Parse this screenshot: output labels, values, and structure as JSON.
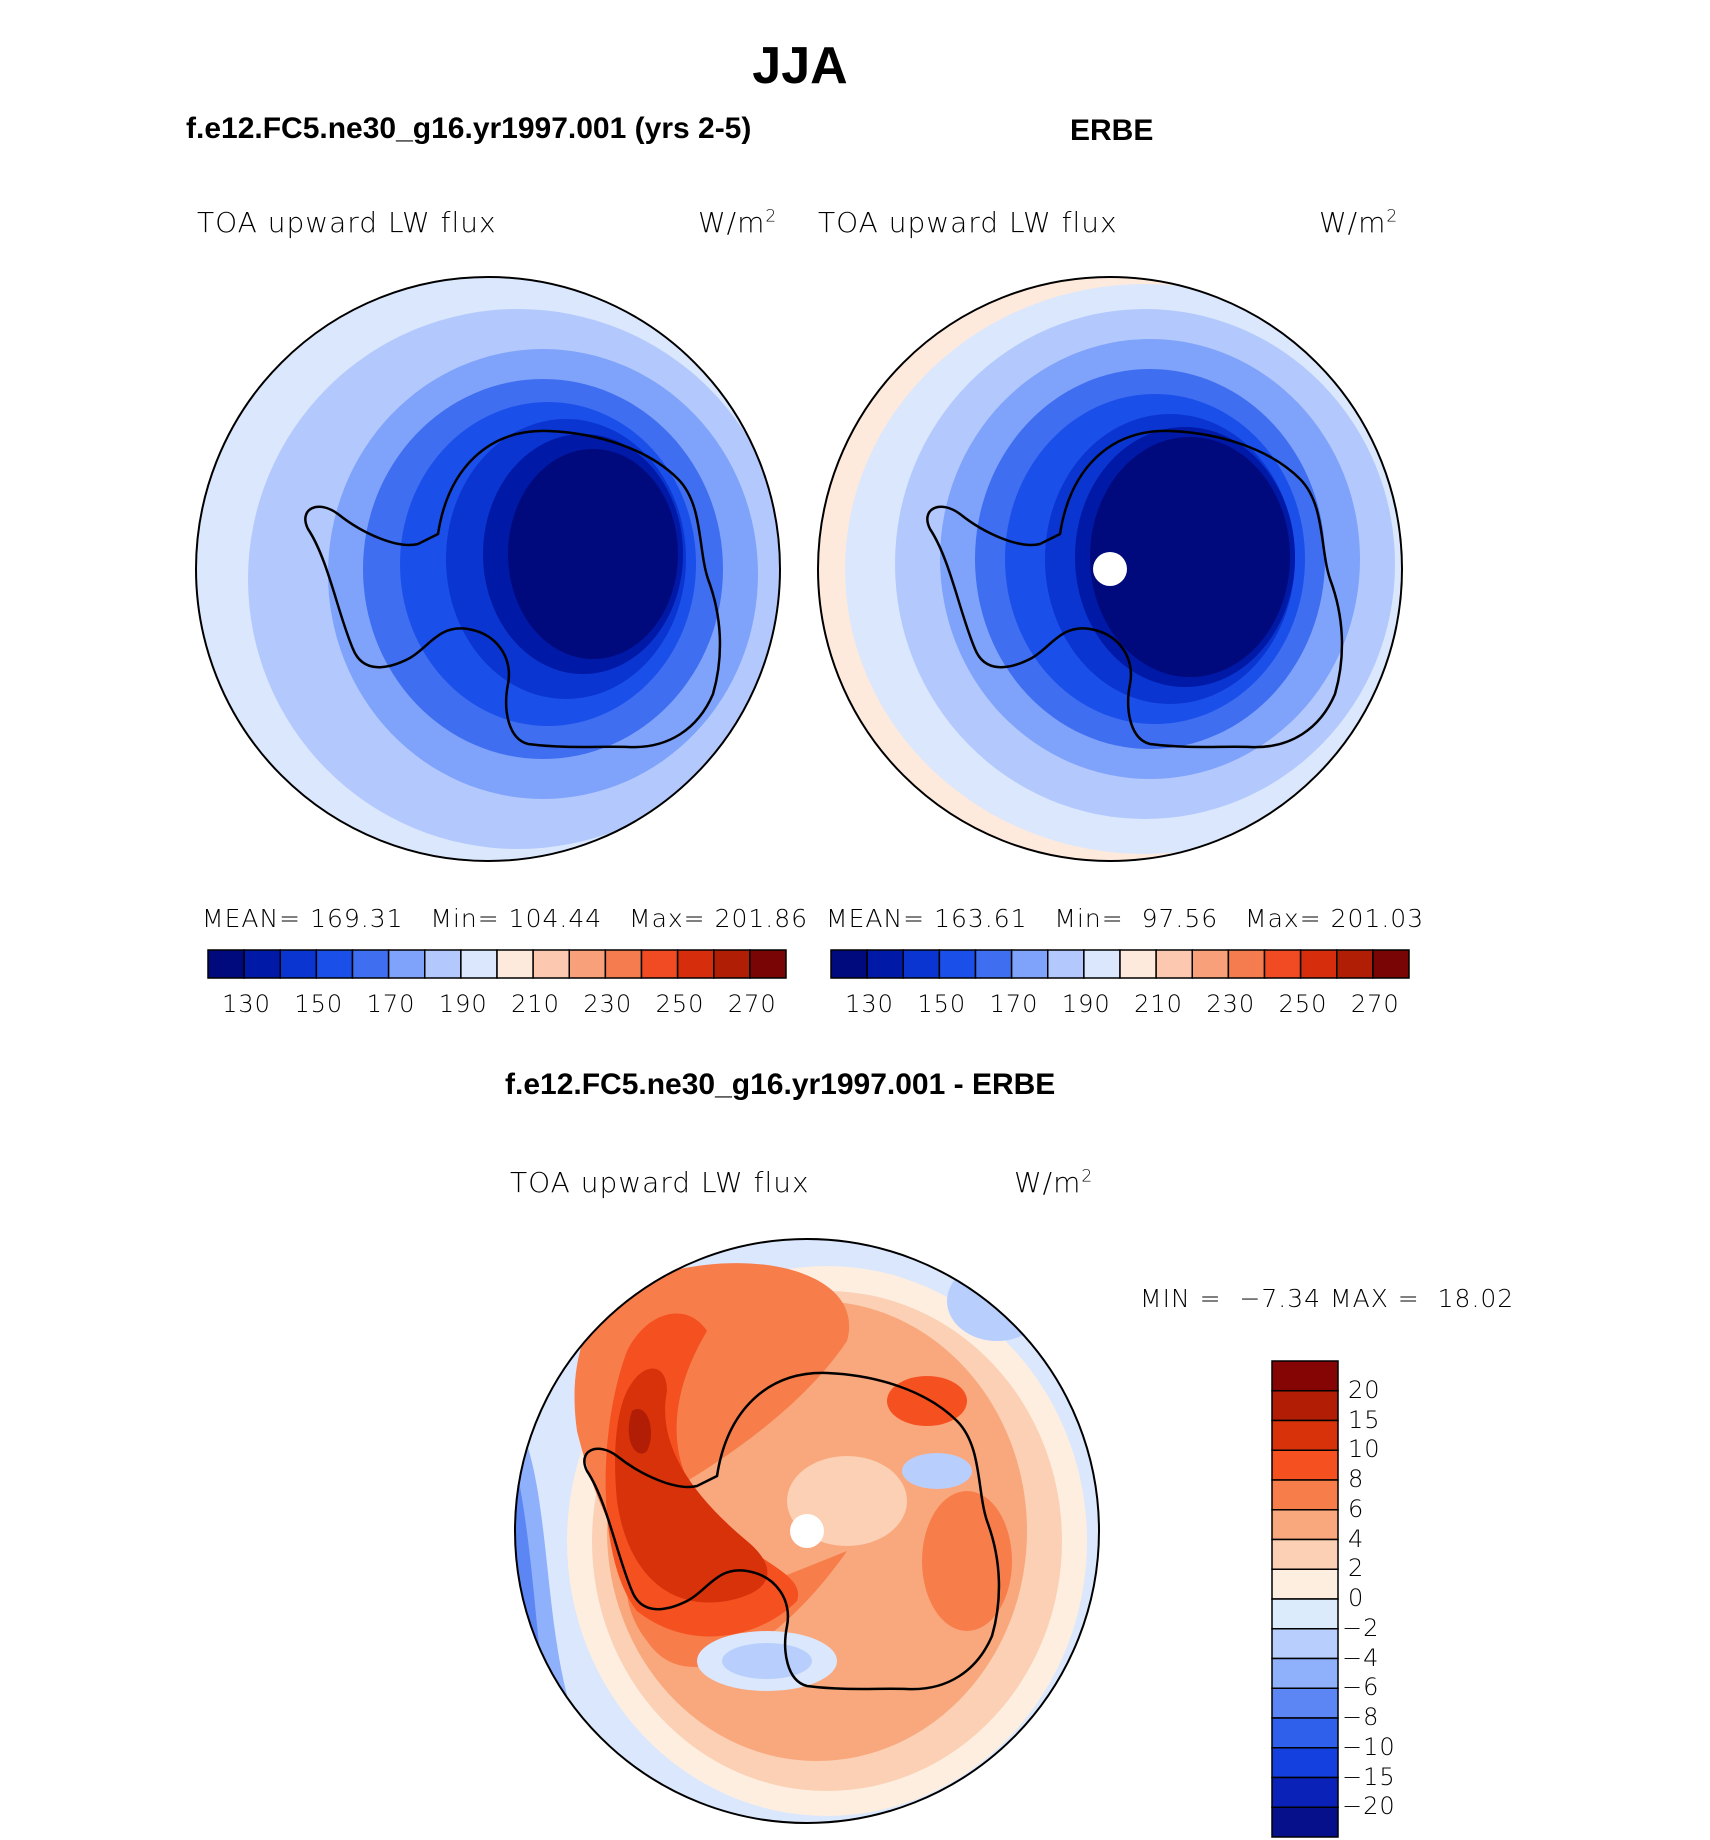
{
  "title": "JJA",
  "panels": [
    {
      "subtitle": "f.e12.FC5.ne30_g16.yr1997.001 (yrs 2-5)",
      "left_label": "TOA upward LW flux",
      "unit": "W/m",
      "unit_exp": "2",
      "mean_label": "MEAN=",
      "mean": "169.31",
      "min_label": "Min=",
      "min": "104.44",
      "max_label": "Max=",
      "max": "201.86"
    },
    {
      "subtitle": "ERBE",
      "left_label": "TOA upward LW flux",
      "unit": "W/m",
      "unit_exp": "2",
      "mean_label": "MEAN=",
      "mean": "163.61",
      "min_label": "Min=",
      "min": "97.56",
      "max_label": "Max=",
      "max": "201.03"
    }
  ],
  "abs_colorbar": {
    "colors": [
      "#000a7d",
      "#0019a6",
      "#0a35d0",
      "#1b4fea",
      "#3f6ef0",
      "#7fa3fb",
      "#b3c9fd",
      "#dbe7fc",
      "#feeadc",
      "#fcc9b0",
      "#f7a07a",
      "#f57c4f",
      "#f04b22",
      "#d62d0d",
      "#b01e06",
      "#7a0505"
    ],
    "tick_labels": [
      "130",
      "150",
      "170",
      "190",
      "210",
      "230",
      "250",
      "270"
    ]
  },
  "diff": {
    "title": "f.e12.FC5.ne30_g16.yr1997.001 - ERBE",
    "left_label": "TOA upward LW flux",
    "unit": "W/m",
    "unit_exp": "2",
    "min_label": "MIN =",
    "min": "−7.34",
    "max_label": "MAX =",
    "max": "18.02",
    "colorbar": {
      "colors": [
        "#850505",
        "#b11d05",
        "#d8320b",
        "#f55020",
        "#f77d4a",
        "#f9a87d",
        "#fbd0b4",
        "#fdeee0",
        "#dcebfc",
        "#b8cffd",
        "#8fb0fb",
        "#5c86f4",
        "#2f60ec",
        "#1540e0",
        "#0a22b8",
        "#05108a"
      ],
      "tick_labels": [
        "20",
        "15",
        "10",
        "8",
        "6",
        "4",
        "2",
        "0",
        "−2",
        "−4",
        "−6",
        "−8",
        "−10",
        "−15",
        "−20"
      ]
    }
  }
}
